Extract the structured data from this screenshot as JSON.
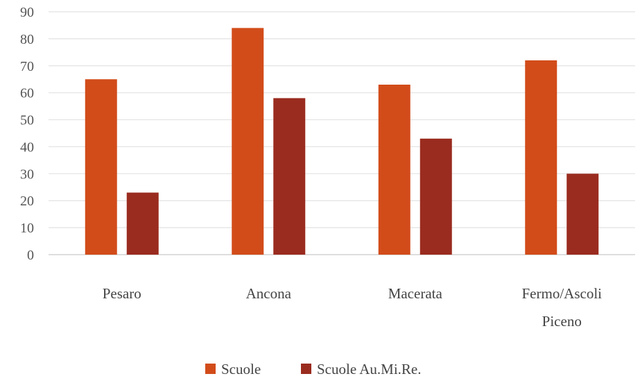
{
  "chart_data": {
    "type": "bar",
    "categories": [
      "Pesaro",
      "Ancona",
      "Macerata",
      "Fermo/Ascoli Piceno"
    ],
    "category_lines": [
      [
        "Pesaro"
      ],
      [
        "Ancona"
      ],
      [
        "Macerata"
      ],
      [
        "Fermo/Ascoli",
        "Piceno"
      ]
    ],
    "series": [
      {
        "name": "Scuole",
        "values": [
          65,
          84,
          63,
          72
        ],
        "color": "#d24c1a"
      },
      {
        "name": "Scuole Au.Mi.Re.",
        "values": [
          23,
          58,
          43,
          30
        ],
        "color": "#9a2b1f"
      }
    ],
    "title": "",
    "xlabel": "",
    "ylabel": "",
    "ylim": [
      0,
      90
    ],
    "yticks": [
      0,
      10,
      20,
      30,
      40,
      50,
      60,
      70,
      80,
      90
    ],
    "grid": true,
    "legend_position": "bottom"
  }
}
